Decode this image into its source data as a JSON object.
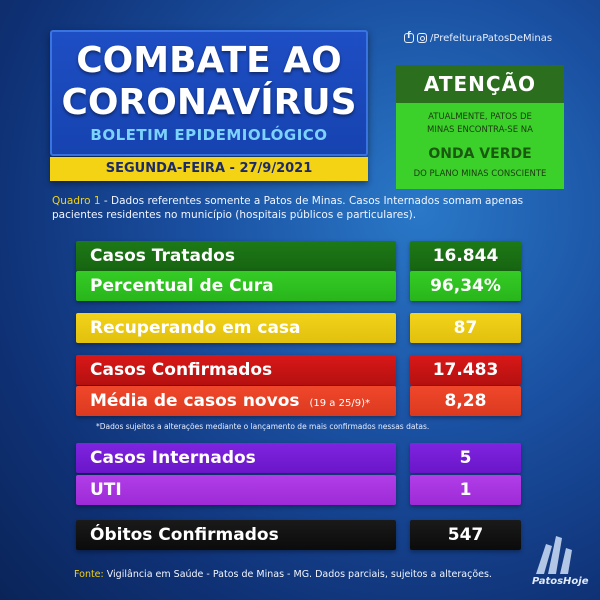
{
  "header": {
    "title_line1": "COMBATE AO",
    "title_line2": "CORONAVÍRUS",
    "subtitle": "BOLETIM EPIDEMIOLÓGICO",
    "date": "SEGUNDA-FEIRA - 27/9/2021"
  },
  "social": {
    "handle": "/PrefeituraPatosDeMinas",
    "icons": [
      "facebook-icon",
      "instagram-icon"
    ]
  },
  "attention": {
    "heading": "ATENÇÃO",
    "text_line1": "ATUALMENTE, PATOS DE",
    "text_line2": "MINAS ENCONTRA-SE NA",
    "wave": "ONDA VERDE",
    "text_line3": "DO PLANO MINAS CONSCIENTE"
  },
  "description": {
    "label": "Quadro 1",
    "text": " - Dados referentes somente a Patos de Minas. Casos Internados somam apenas pacientes residentes no município (hospitais públicos e particulares)."
  },
  "rows": {
    "tratados": {
      "label": "Casos Tratados",
      "value": "16.844"
    },
    "cura": {
      "label": "Percentual de Cura",
      "value": "96,34%"
    },
    "recuperando": {
      "label": "Recuperando em casa",
      "value": "87"
    },
    "confirmados": {
      "label": "Casos Confirmados",
      "value": "17.483"
    },
    "media": {
      "label": "Média de casos novos",
      "note": "(19 a 25/9)*",
      "value": "8,28"
    },
    "internados": {
      "label": "Casos Internados",
      "value": "5"
    },
    "uti": {
      "label": "UTI",
      "value": "1"
    },
    "obitos": {
      "label": "Óbitos Confirmados",
      "value": "547"
    }
  },
  "footnote": "*Dados sujeitos a alterações mediante o lançamento de mais confirmados nessas datas.",
  "source": {
    "label": "Fonte:",
    "text": " Vigilância em Saúde - Patos de Minas - MG. Dados parciais, sujeitos a alterações."
  },
  "logo": {
    "text": "PatosHoje"
  },
  "colors": {
    "background": "#1a4fa0",
    "title_box": "#1e4ec4",
    "accent_yellow": "#f3d314",
    "attention_dark": "#2b6e1d",
    "attention_light": "#3bd12a",
    "dark_green": "#1d7a16",
    "green": "#35cc25",
    "yellow": "#f2d31a",
    "red": "#d91818",
    "light_red": "#f0472b",
    "purple": "#7f24e0",
    "violet": "#b13ee8",
    "black": "#1a1a1a"
  }
}
